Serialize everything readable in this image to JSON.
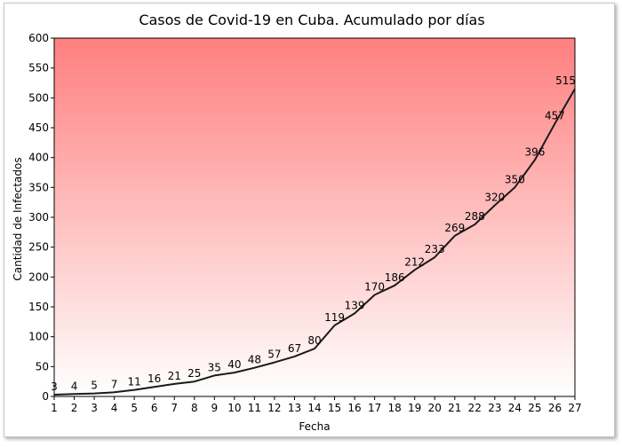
{
  "chart_data": {
    "type": "line",
    "title": "Casos de Covid-19 en Cuba. Acumulado por días",
    "xlabel": "Fecha",
    "ylabel": "Cantidad de Infectados",
    "x": [
      1,
      2,
      3,
      4,
      5,
      6,
      7,
      8,
      9,
      10,
      11,
      12,
      13,
      14,
      15,
      16,
      17,
      18,
      19,
      20,
      21,
      22,
      23,
      24,
      25,
      26,
      27
    ],
    "series": [
      {
        "values": [
          3,
          4,
          5,
          7,
          11,
          16,
          21,
          25,
          35,
          40,
          48,
          57,
          67,
          80,
          119,
          139,
          170,
          186,
          212,
          233,
          269,
          288,
          320,
          350,
          396,
          457,
          515
        ]
      }
    ],
    "xlim": [
      1,
      27
    ],
    "ylim": [
      0,
      600
    ],
    "yticks": [
      0,
      50,
      100,
      150,
      200,
      250,
      300,
      350,
      400,
      450,
      500,
      550,
      600
    ],
    "grid": false,
    "legend": "none",
    "colors": {
      "line": "#1a1a1a",
      "gradient_top": "#ff7f7f",
      "gradient_bottom": "#ffffff",
      "plot_border": "#000000"
    }
  }
}
